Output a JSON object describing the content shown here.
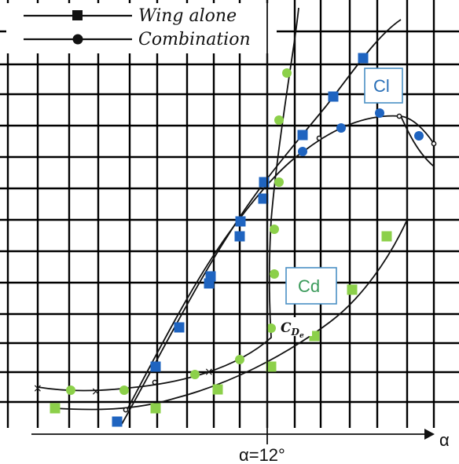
{
  "legend": {
    "wing_alone": "Wing alone",
    "combination": "Combination"
  },
  "labels": {
    "cl": "Cl",
    "cd": "Cd",
    "cde_main": "C",
    "cde_sub": "D",
    "cde_subsub": "e",
    "x_axis": "α",
    "alpha_mark": "α=12°"
  },
  "colors": {
    "blue": "#1f64c0",
    "green": "#8cd04a",
    "box_text_blue": "#2a70b8",
    "box_text_green": "#3a9a5a",
    "box_border": "#4a8fc4"
  },
  "chart_data": {
    "type": "scatter",
    "x_axis_label": "α",
    "alpha_marker": 12,
    "series": [
      {
        "name": "Cl",
        "marker": "square",
        "color": "#1f64c0",
        "points": [
          [
            149,
            537
          ],
          [
            198,
            467
          ],
          [
            228,
            417
          ],
          [
            266,
            361
          ],
          [
            268,
            352
          ],
          [
            305,
            301
          ],
          [
            306,
            282
          ],
          [
            335,
            253
          ],
          [
            336,
            232
          ],
          [
            385,
            172
          ],
          [
            424,
            123
          ],
          [
            462,
            74
          ]
        ]
      },
      {
        "name": "Cl",
        "marker": "circle",
        "color": "#1f64c0",
        "points": [
          [
            385,
            193
          ],
          [
            434,
            163
          ],
          [
            483,
            144
          ],
          [
            533,
            173
          ]
        ]
      },
      {
        "name": "Cd",
        "marker": "square",
        "color": "#8cd04a",
        "points": [
          [
            70,
            520
          ],
          [
            198,
            520
          ],
          [
            277,
            496
          ],
          [
            345,
            467
          ],
          [
            400,
            428
          ],
          [
            448,
            369
          ],
          [
            492,
            301
          ]
        ]
      },
      {
        "name": "Cd",
        "marker": "circle",
        "color": "#8cd04a",
        "points": [
          [
            90,
            497
          ],
          [
            158,
            497
          ],
          [
            248,
            477
          ],
          [
            305,
            458
          ],
          [
            345,
            418
          ],
          [
            349,
            349
          ],
          [
            349,
            292
          ],
          [
            355,
            232
          ],
          [
            355,
            153
          ],
          [
            365,
            93
          ]
        ]
      }
    ]
  }
}
